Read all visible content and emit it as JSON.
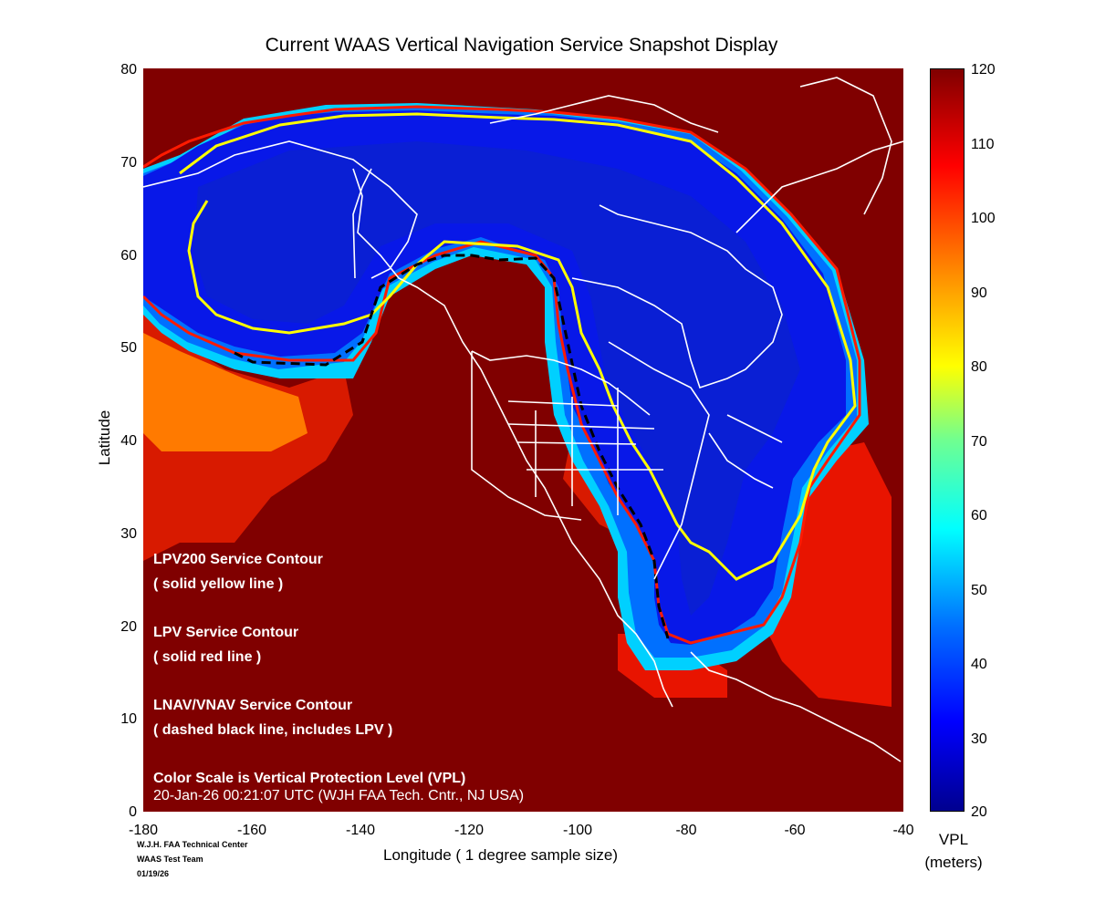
{
  "title": "Current WAAS Vertical Navigation Service Snapshot Display",
  "y_axis": {
    "label": "Latitude",
    "ticks": [
      "80",
      "70",
      "60",
      "50",
      "40",
      "30",
      "20",
      "10",
      "0"
    ]
  },
  "x_axis": {
    "label": "Longitude   ( 1 degree sample size)",
    "ticks": [
      "-180",
      "-160",
      "-140",
      "-120",
      "-100",
      "-80",
      "-60",
      "-40"
    ]
  },
  "colorbar": {
    "ticks": [
      "120",
      "110",
      "100",
      "90",
      "80",
      "70",
      "60",
      "50",
      "40",
      "30",
      "20"
    ],
    "label_line1": "VPL",
    "label_line2": "(meters)"
  },
  "legend": {
    "lpv200_title": "LPV200 Service Contour",
    "lpv200_desc": "( solid yellow line )",
    "lpv_title": "LPV Service Contour",
    "lpv_desc": "( solid red line )",
    "lnav_title": "LNAV/VNAV Service Contour",
    "lnav_desc": "( dashed black line, includes LPV )",
    "scale_note": "Color Scale is Vertical Protection Level (VPL)",
    "timestamp": "20-Jan-26 00:21:07 UTC  (WJH FAA Tech. Cntr., NJ USA)"
  },
  "credits": {
    "line1": "W.J.H. FAA Technical Center",
    "line2": "WAAS Test Team",
    "line3": "01/19/26"
  },
  "map": {
    "lon_range": [
      -180,
      -40
    ],
    "lat_range": [
      0,
      80
    ],
    "background_color": "#800000",
    "coverage_color": "#0000e0",
    "lpv200_color": "#ffff00",
    "lpv_color": "#ff0000",
    "lnav_color": "#000000",
    "coastline_color": "#ffffff"
  }
}
